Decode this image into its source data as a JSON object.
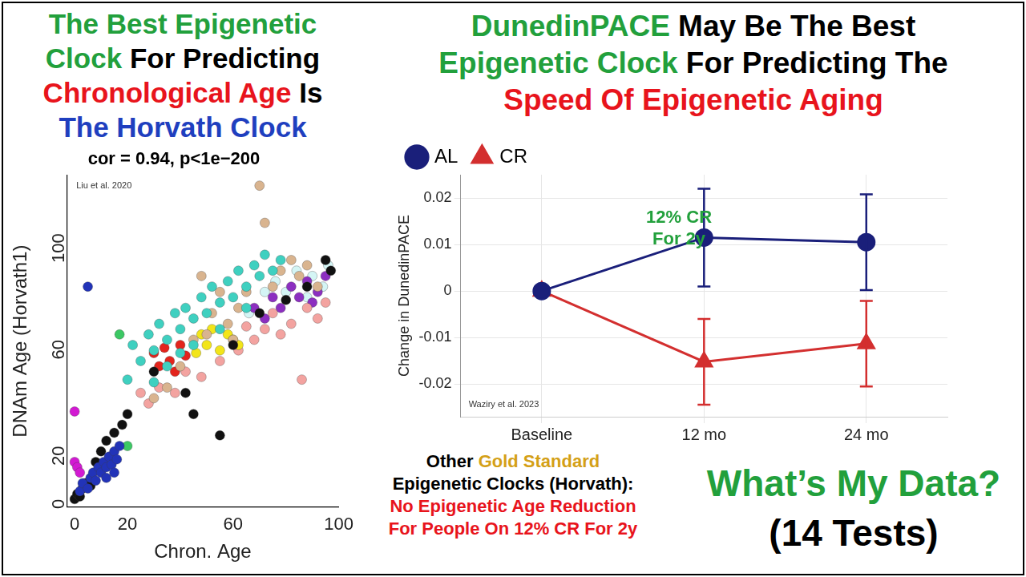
{
  "headings": {
    "left": [
      [
        {
          "text": "The Best Epigenetic",
          "color": "#22a03c"
        }
      ],
      [
        {
          "text": "Clock",
          "color": "#22a03c"
        },
        {
          "text": "For Predicting",
          "color": "#000000"
        }
      ],
      [
        {
          "text": "Chronological Age",
          "color": "#e8141c"
        },
        {
          "text": "Is",
          "color": "#000000"
        }
      ],
      [
        {
          "text": "The Horvath Clock",
          "color": "#1f3fbf"
        }
      ]
    ],
    "right": [
      [
        {
          "text": "DunedinPACE",
          "color": "#22a03c"
        },
        {
          "text": "May Be The Best",
          "color": "#000000"
        }
      ],
      [
        {
          "text": "Epigenetic Clock",
          "color": "#22a03c"
        },
        {
          "text": "For Predicting The",
          "color": "#000000"
        }
      ],
      [
        {
          "text": "Speed Of Epigenetic Aging",
          "color": "#e8141c"
        }
      ]
    ],
    "bottom_left": [
      [
        {
          "text": "Other",
          "color": "#000000"
        },
        {
          "text": "Gold Standard",
          "color": "#d4a017"
        }
      ],
      [
        {
          "text": "Epigenetic Clocks (Horvath):",
          "color": "#000000"
        }
      ],
      [
        {
          "text": "No Epigenetic Age Reduction",
          "color": "#e8141c"
        }
      ],
      [
        {
          "text": "For People On 12% CR For 2y",
          "color": "#e8141c"
        }
      ]
    ],
    "bottom_right": [
      [
        {
          "text": "What’s My Data?",
          "color": "#22a03c"
        }
      ],
      [
        {
          "text": "(14 Tests)",
          "color": "#000000"
        }
      ]
    ]
  },
  "chart_data": [
    {
      "type": "scatter",
      "title": "cor = 0.94, p<1e−200",
      "source": "Liu et al. 2020",
      "x_label": "Chron. Age",
      "y_label": "DNAm Age (Horvath1)",
      "xlim": [
        -3,
        100
      ],
      "ylim": [
        -3,
        122
      ],
      "xticks": [
        0,
        20,
        60,
        100
      ],
      "yticks": [
        0,
        20,
        60,
        100
      ],
      "grid": false,
      "marker": "circle",
      "series": [
        {
          "color": "#2233b8",
          "x": [
            2,
            3,
            5,
            6,
            7,
            8,
            9,
            10,
            11,
            12,
            13,
            14,
            15,
            16,
            17,
            5,
            12,
            15
          ],
          "y": [
            3,
            6,
            4,
            8,
            10,
            7,
            12,
            10,
            14,
            12,
            16,
            13,
            18,
            15,
            20,
            80,
            8,
            10
          ]
        },
        {
          "color": "#111111",
          "x": [
            0,
            1,
            2,
            3,
            4,
            6,
            8,
            10,
            12,
            15,
            18,
            20,
            45,
            55,
            42,
            60,
            80,
            95,
            97,
            30,
            70,
            88
          ],
          "y": [
            0,
            2,
            1,
            4,
            6,
            5,
            14,
            18,
            22,
            25,
            28,
            32,
            32,
            24,
            40,
            58,
            75,
            90,
            86,
            48,
            70,
            80
          ]
        },
        {
          "color": "#d21ad2",
          "x": [
            0,
            0,
            1,
            2
          ],
          "y": [
            33,
            14,
            12,
            10
          ]
        },
        {
          "color": "#3cc864",
          "x": [
            17,
            20
          ],
          "y": [
            62,
            20
          ]
        },
        {
          "color": "#3fd0c0",
          "x": [
            20,
            22,
            25,
            28,
            30,
            32,
            35,
            38,
            40,
            42,
            45,
            48,
            50,
            52,
            55,
            58,
            60,
            62,
            65,
            68,
            70,
            72,
            75,
            78,
            35,
            45,
            55,
            30,
            40,
            65
          ],
          "y": [
            45,
            58,
            52,
            62,
            56,
            66,
            60,
            70,
            64,
            72,
            68,
            76,
            70,
            80,
            74,
            82,
            76,
            86,
            80,
            88,
            84,
            92,
            86,
            90,
            50,
            58,
            64,
            44,
            55,
            72
          ]
        },
        {
          "color": "#d9b48f",
          "x": [
            30,
            35,
            40,
            45,
            48,
            52,
            55,
            58,
            62,
            65,
            70,
            72,
            75,
            78,
            82,
            85,
            88,
            92,
            50,
            60
          ],
          "y": [
            38,
            42,
            50,
            60,
            84,
            70,
            78,
            66,
            72,
            78,
            118,
            104,
            80,
            86,
            90,
            84,
            88,
            80,
            62,
            60
          ]
        },
        {
          "color": "#e3241c",
          "x": [
            30,
            32,
            34,
            36,
            38,
            40,
            42
          ],
          "y": [
            55,
            50,
            57,
            52,
            48,
            58,
            54
          ]
        },
        {
          "color": "#f2e51a",
          "x": [
            46,
            48,
            50,
            52,
            55,
            58,
            60,
            62
          ],
          "y": [
            55,
            62,
            58,
            64,
            56,
            62,
            60,
            58
          ]
        },
        {
          "color": "#f3a3a0",
          "x": [
            25,
            28,
            32,
            38,
            42,
            48,
            55,
            62,
            68,
            72,
            78,
            82,
            86,
            88,
            92,
            95,
            65,
            75
          ],
          "y": [
            40,
            36,
            42,
            40,
            48,
            46,
            52,
            56,
            60,
            64,
            62,
            66,
            45,
            72,
            68,
            74,
            65,
            70
          ]
        },
        {
          "color": "#8c2fc0",
          "x": [
            68,
            72,
            75,
            78,
            82,
            85,
            88,
            92,
            95,
            90
          ],
          "y": [
            72,
            68,
            76,
            72,
            80,
            76,
            82,
            78,
            84,
            74
          ]
        },
        {
          "color": "#d4f5f5",
          "x": [
            66,
            72,
            76,
            80,
            84,
            88,
            90,
            94,
            96
          ],
          "y": [
            70,
            78,
            82,
            78,
            86,
            76,
            84,
            80,
            88
          ]
        }
      ]
    },
    {
      "type": "line",
      "source": "Waziry et al. 2023",
      "annotations": [
        {
          "text": "12% CR\nFor 2y",
          "color": "#22a03c"
        }
      ],
      "categories": [
        "Baseline",
        "12 mo",
        "24 mo"
      ],
      "y_label": "Change in DunedinPACE",
      "ylim": [
        -0.027,
        0.025
      ],
      "yticks": [
        -0.02,
        -0.01,
        0,
        0.01,
        0.02
      ],
      "grid": true,
      "legend": "upper left",
      "series": [
        {
          "name": "AL",
          "color": "#1a1f7a",
          "marker": "circle",
          "values": [
            0,
            0.0115,
            0.0105
          ],
          "errors": [
            null,
            0.0105,
            0.0103
          ]
        },
        {
          "name": "CR",
          "color": "#d32f2f",
          "marker": "triangle",
          "values": [
            0,
            -0.0152,
            -0.0113
          ],
          "errors": [
            null,
            0.0092,
            0.0092
          ]
        }
      ]
    }
  ]
}
